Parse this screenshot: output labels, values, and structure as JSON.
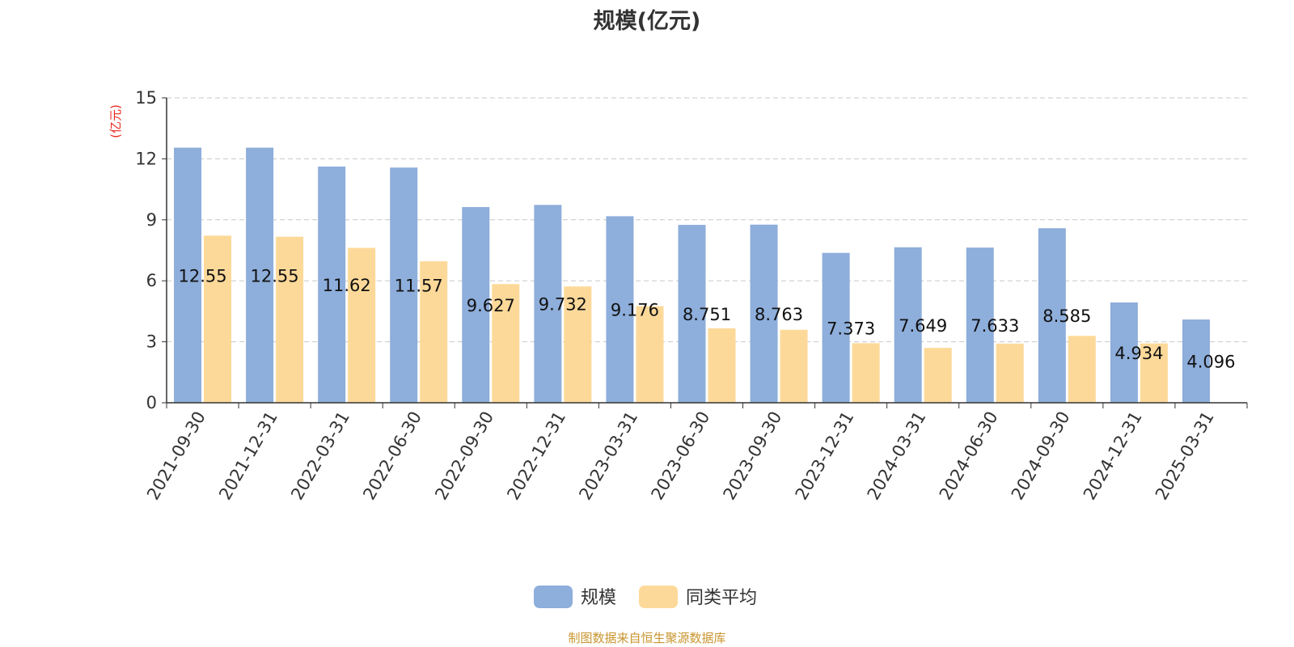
{
  "chart_data": {
    "type": "bar",
    "title": "规模(亿元)",
    "ylabel": "(亿元)",
    "ylim": [
      0,
      15
    ],
    "yticks": [
      0,
      3,
      6,
      9,
      12,
      15
    ],
    "grid": true,
    "legend_position": "bottom",
    "categories": [
      "2021-09-30",
      "2021-12-31",
      "2022-03-31",
      "2022-06-30",
      "2022-09-30",
      "2022-12-31",
      "2023-03-31",
      "2023-06-30",
      "2023-09-30",
      "2023-12-31",
      "2024-03-31",
      "2024-06-30",
      "2024-09-30",
      "2024-12-31",
      "2025-03-31"
    ],
    "series": [
      {
        "name": "规模",
        "color": "#8eaedb",
        "values": [
          12.55,
          12.55,
          11.62,
          11.57,
          9.627,
          9.732,
          9.176,
          8.751,
          8.763,
          7.373,
          7.649,
          7.633,
          8.585,
          4.934,
          4.096
        ],
        "labels": [
          "12.55",
          "12.55",
          "11.62",
          "11.57",
          "9.627",
          "9.732",
          "9.176",
          "8.751",
          "8.763",
          "7.373",
          "7.649",
          "7.633",
          "8.585",
          "4.934",
          "4.096"
        ]
      },
      {
        "name": "同类平均",
        "color": "#fdd999",
        "values": [
          8.22,
          8.17,
          7.62,
          6.96,
          5.84,
          5.72,
          4.75,
          3.66,
          3.59,
          2.93,
          2.7,
          2.91,
          3.29,
          2.92,
          null
        ]
      }
    ]
  },
  "source_note": "制图数据来自恒生聚源数据库"
}
